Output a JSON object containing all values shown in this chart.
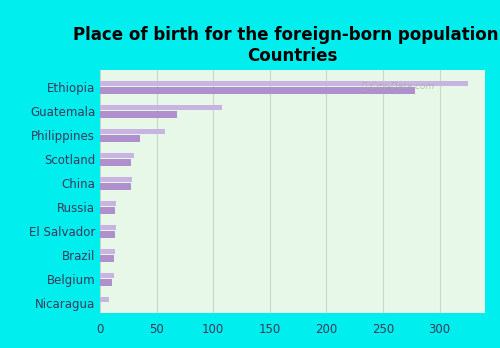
{
  "title": "Place of birth for the foreign-born population -\nCountries",
  "categories": [
    "Ethiopia",
    "Guatemala",
    "Philippines",
    "Scotland",
    "China",
    "Russia",
    "El Salvador",
    "Brazil",
    "Belgium",
    "Nicaragua"
  ],
  "values1": [
    325,
    108,
    57,
    30,
    28,
    14,
    14,
    13,
    12,
    8
  ],
  "values2": [
    278,
    68,
    35,
    27,
    27,
    13,
    13,
    12,
    11,
    0
  ],
  "bar_color1": "#c8b4e0",
  "bar_color2": "#b090cc",
  "bg_outer": "#00eeee",
  "bg_plot_top": "#f0fff0",
  "bg_plot_bottom": "#d8f5d8",
  "grid_color": "#c8d8c8",
  "text_color": "#3a3a5a",
  "xlim": [
    0,
    340
  ],
  "xticks": [
    0,
    50,
    100,
    150,
    200,
    250,
    300
  ],
  "title_fontsize": 12,
  "label_fontsize": 8.5
}
